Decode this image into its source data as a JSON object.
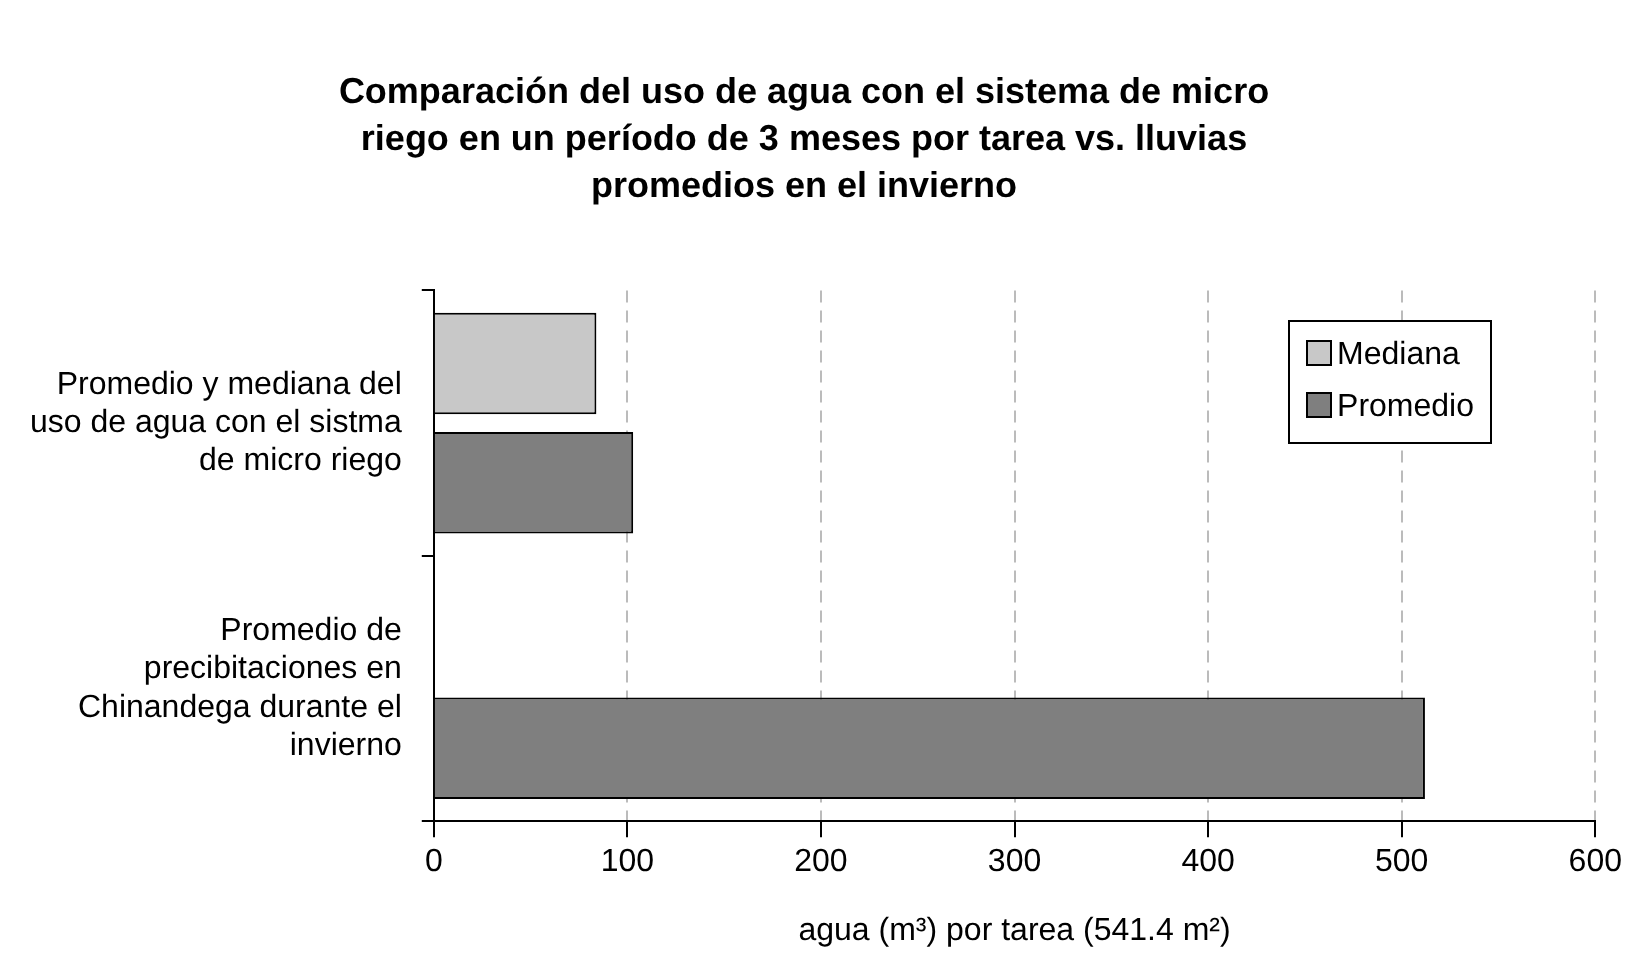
{
  "chart_data": {
    "type": "bar",
    "orientation": "horizontal",
    "title": "Comparación del uso de agua con el sistema de micro riego en un período de 3 meses por tarea vs. lluvias promedios en el invierno",
    "xlabel": "agua (m³) por tarea (541.4 m²)",
    "categories": [
      "Promedio y mediana del uso de agua con el sistma de micro riego",
      "Promedio de precibitaciones en Chinandega durante el invierno"
    ],
    "series": [
      {
        "name": "Mediana",
        "color": "#c8c8c8",
        "values": [
          84,
          null
        ]
      },
      {
        "name": "Promedio",
        "color": "#7f7f7f",
        "values": [
          103,
          512
        ]
      }
    ],
    "xlim": [
      0,
      600
    ],
    "xticks": [
      0,
      100,
      200,
      300,
      400,
      500,
      600
    ],
    "grid": "x",
    "legend": "top right"
  }
}
